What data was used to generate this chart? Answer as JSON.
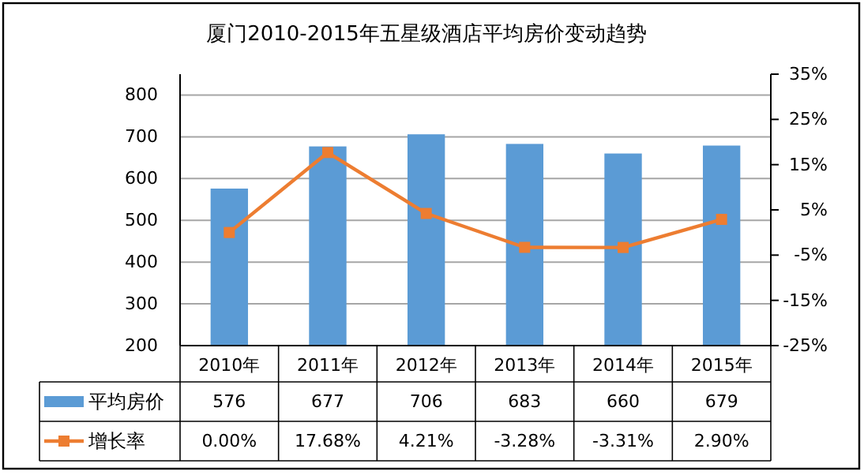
{
  "chart_data": {
    "type": "bar",
    "title": "厦门2010-2015年五星级酒店平均房价变动趋势",
    "categories": [
      "2010年",
      "2011年",
      "2012年",
      "2013年",
      "2014年",
      "2015年"
    ],
    "series": [
      {
        "name": "平均房价",
        "color": "#5b9bd5",
        "values": [
          576,
          677,
          706,
          683,
          660,
          679
        ],
        "value_labels": [
          "576",
          "677",
          "706",
          "683",
          "660",
          "679"
        ]
      },
      {
        "name": "增长率",
        "type": "line",
        "axis": "y2",
        "color": "#ed7d31",
        "marker": "square",
        "values": [
          0.0,
          17.68,
          4.21,
          -3.28,
          -3.31,
          2.9
        ],
        "value_labels": [
          "0.00%",
          "17.68%",
          "4.21%",
          "-3.28%",
          "-3.31%",
          "2.90%"
        ]
      }
    ],
    "ylim": [
      200,
      850
    ],
    "yticks": [
      200,
      300,
      400,
      500,
      600,
      700,
      800
    ],
    "y2lim": [
      -25,
      35
    ],
    "y2ticks": [
      {
        "value": -25,
        "label": "-25%"
      },
      {
        "value": -15,
        "label": "-15%"
      },
      {
        "value": -5,
        "label": "-5%"
      },
      {
        "value": 5,
        "label": "5%"
      },
      {
        "value": 15,
        "label": "15%"
      },
      {
        "value": 25,
        "label": "25%"
      },
      {
        "value": 35,
        "label": "35%"
      }
    ],
    "grid": "y",
    "legend": "bottom"
  }
}
